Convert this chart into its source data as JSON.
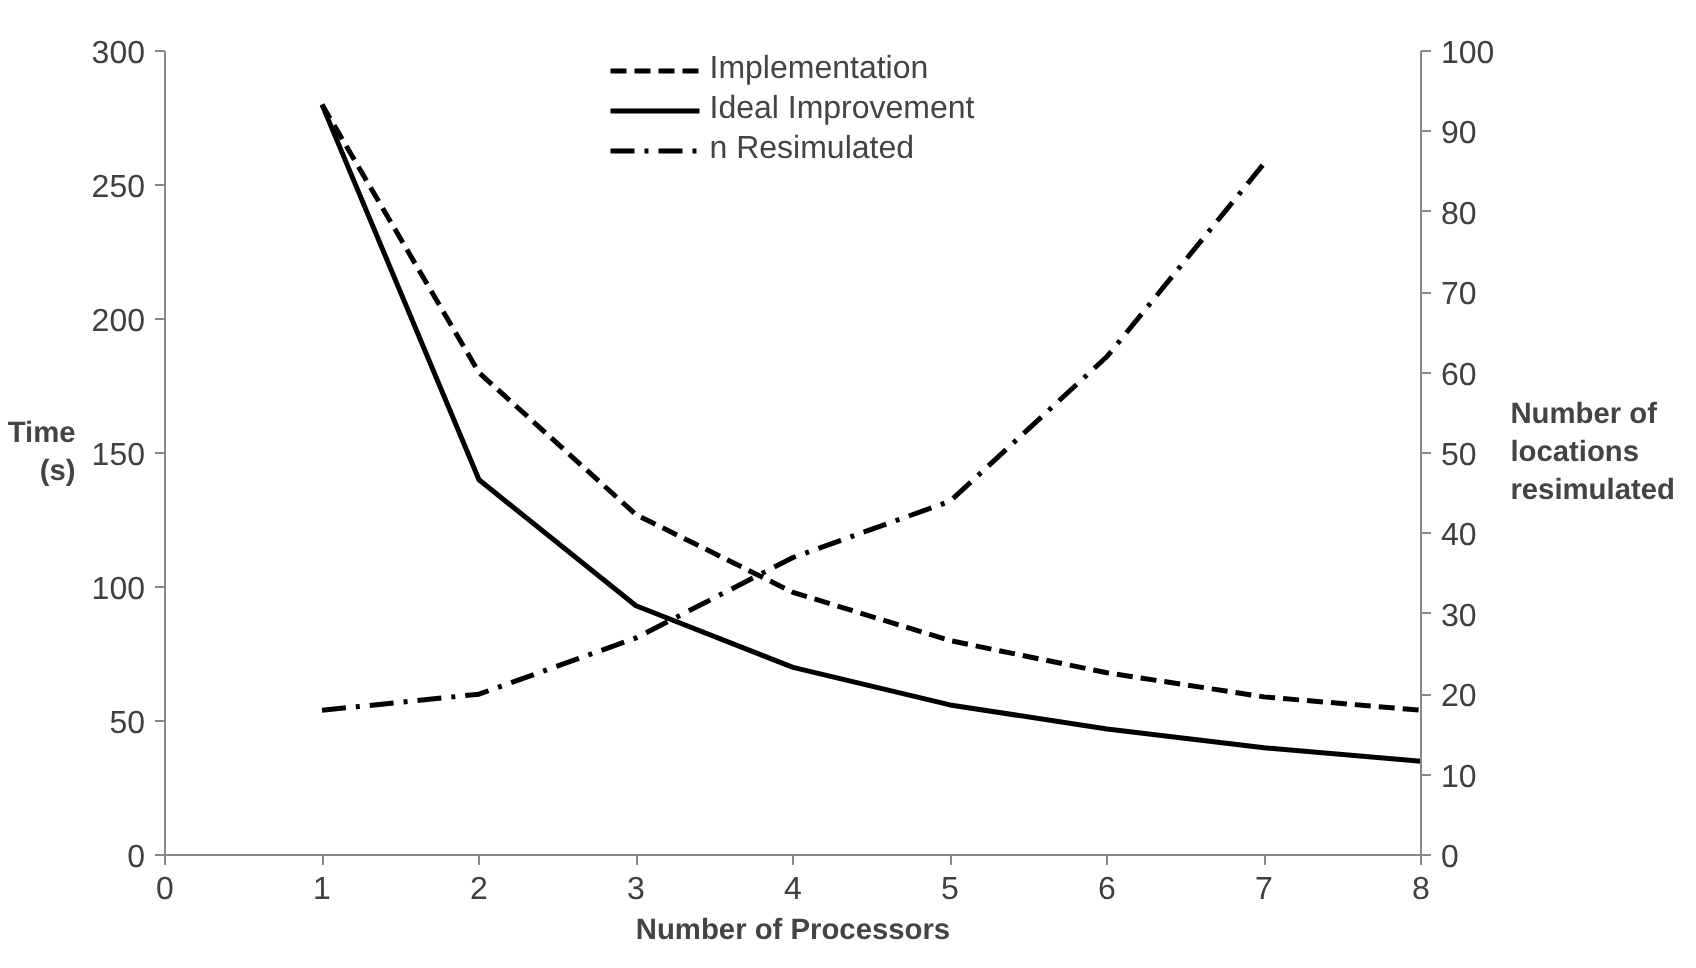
{
  "chart_data": {
    "type": "line",
    "xlabel": "Number of Processors",
    "ylabel": "Time\n(s)",
    "y2label": "Number of\nlocations\nresimulated",
    "x": [
      1,
      2,
      3,
      4,
      5,
      6,
      7,
      8
    ],
    "series": [
      {
        "name": "Implementation",
        "color": "#000000",
        "line_style": "dashed",
        "values": [
          280,
          180,
          127,
          98,
          80,
          68,
          59,
          54
        ]
      },
      {
        "name": "Ideal Improvement",
        "color": "#000000",
        "line_style": "solid",
        "values": [
          280,
          140,
          93,
          70,
          56,
          47,
          40,
          35
        ]
      },
      {
        "name": "n Resimulated",
        "color": "#000000",
        "line_style": "dashdot",
        "axis": "y2",
        "x": [
          1,
          2,
          3,
          4,
          5,
          6,
          7
        ],
        "values": [
          18,
          20,
          27,
          37,
          44,
          62,
          86
        ]
      }
    ],
    "xlim": [
      0,
      8
    ],
    "xticks": [
      0,
      1,
      2,
      3,
      4,
      5,
      6,
      7,
      8
    ],
    "ylim": [
      0,
      300
    ],
    "yticks": [
      0,
      50,
      100,
      150,
      200,
      250,
      300
    ],
    "y2lim": [
      0,
      100
    ],
    "y2ticks": [
      0,
      10,
      20,
      30,
      40,
      50,
      60,
      70,
      80,
      90,
      100
    ],
    "grid": false,
    "legend": "top",
    "marker": "none"
  }
}
